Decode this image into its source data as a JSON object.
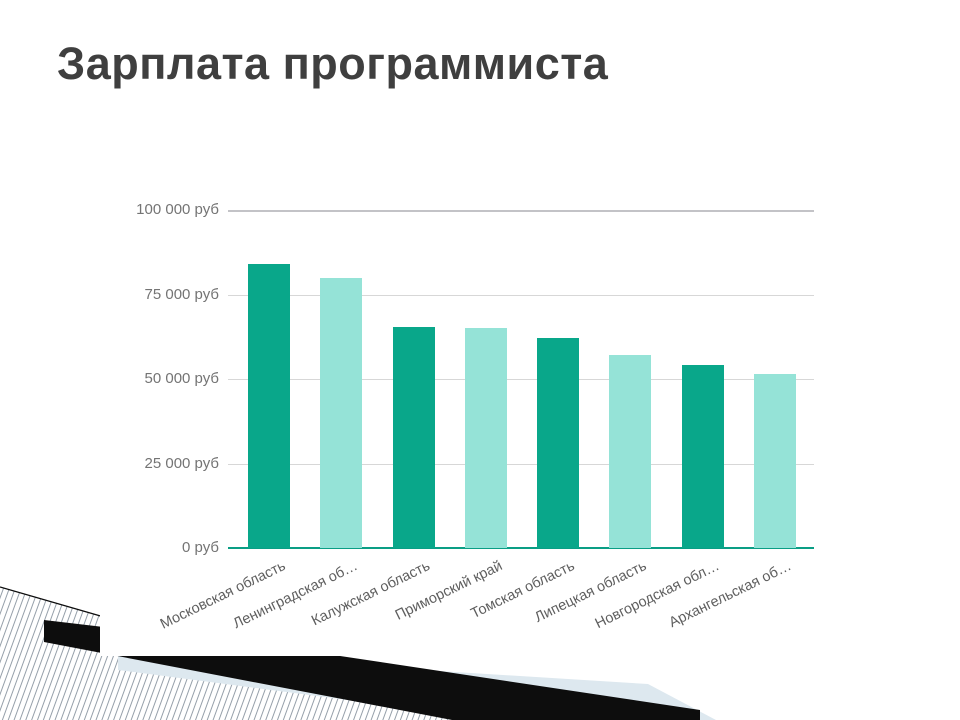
{
  "slide": {
    "title": "Зарплата программиста"
  },
  "chart_data": {
    "type": "bar",
    "title": "Зарплата программиста",
    "categories": [
      "Московская область",
      "Ленинградская об…",
      "Калужская область",
      "Приморский край",
      "Томская область",
      "Липецкая область",
      "Новгородская обл…",
      "Архангельская об…"
    ],
    "values": [
      84000,
      80000,
      65500,
      65000,
      62000,
      57000,
      54000,
      51500
    ],
    "unit": "руб",
    "xlabel": "",
    "ylabel": "",
    "ylim": [
      0,
      100000
    ],
    "y_tick_values": [
      100000,
      75000,
      50000,
      25000,
      0
    ],
    "y_tick_labels": [
      "100 000 руб",
      "75 000 руб",
      "50 000 руб",
      "25 000 руб",
      "0 руб"
    ],
    "grid": true,
    "legend": false,
    "bar_colors_alternating": [
      "#09a78a",
      "#95e3d7"
    ]
  },
  "colors": {
    "title_text": "#3f3f3f",
    "axis_label_text": "#747474",
    "category_label_text": "#5e5e5e",
    "baseline_accent": "#0a9e85",
    "gridline": "#d7d7d7",
    "decor_black": "#0d0d0d",
    "decor_light_blue": "#dde8ef",
    "decor_stripe_line": "#8a95a0"
  }
}
